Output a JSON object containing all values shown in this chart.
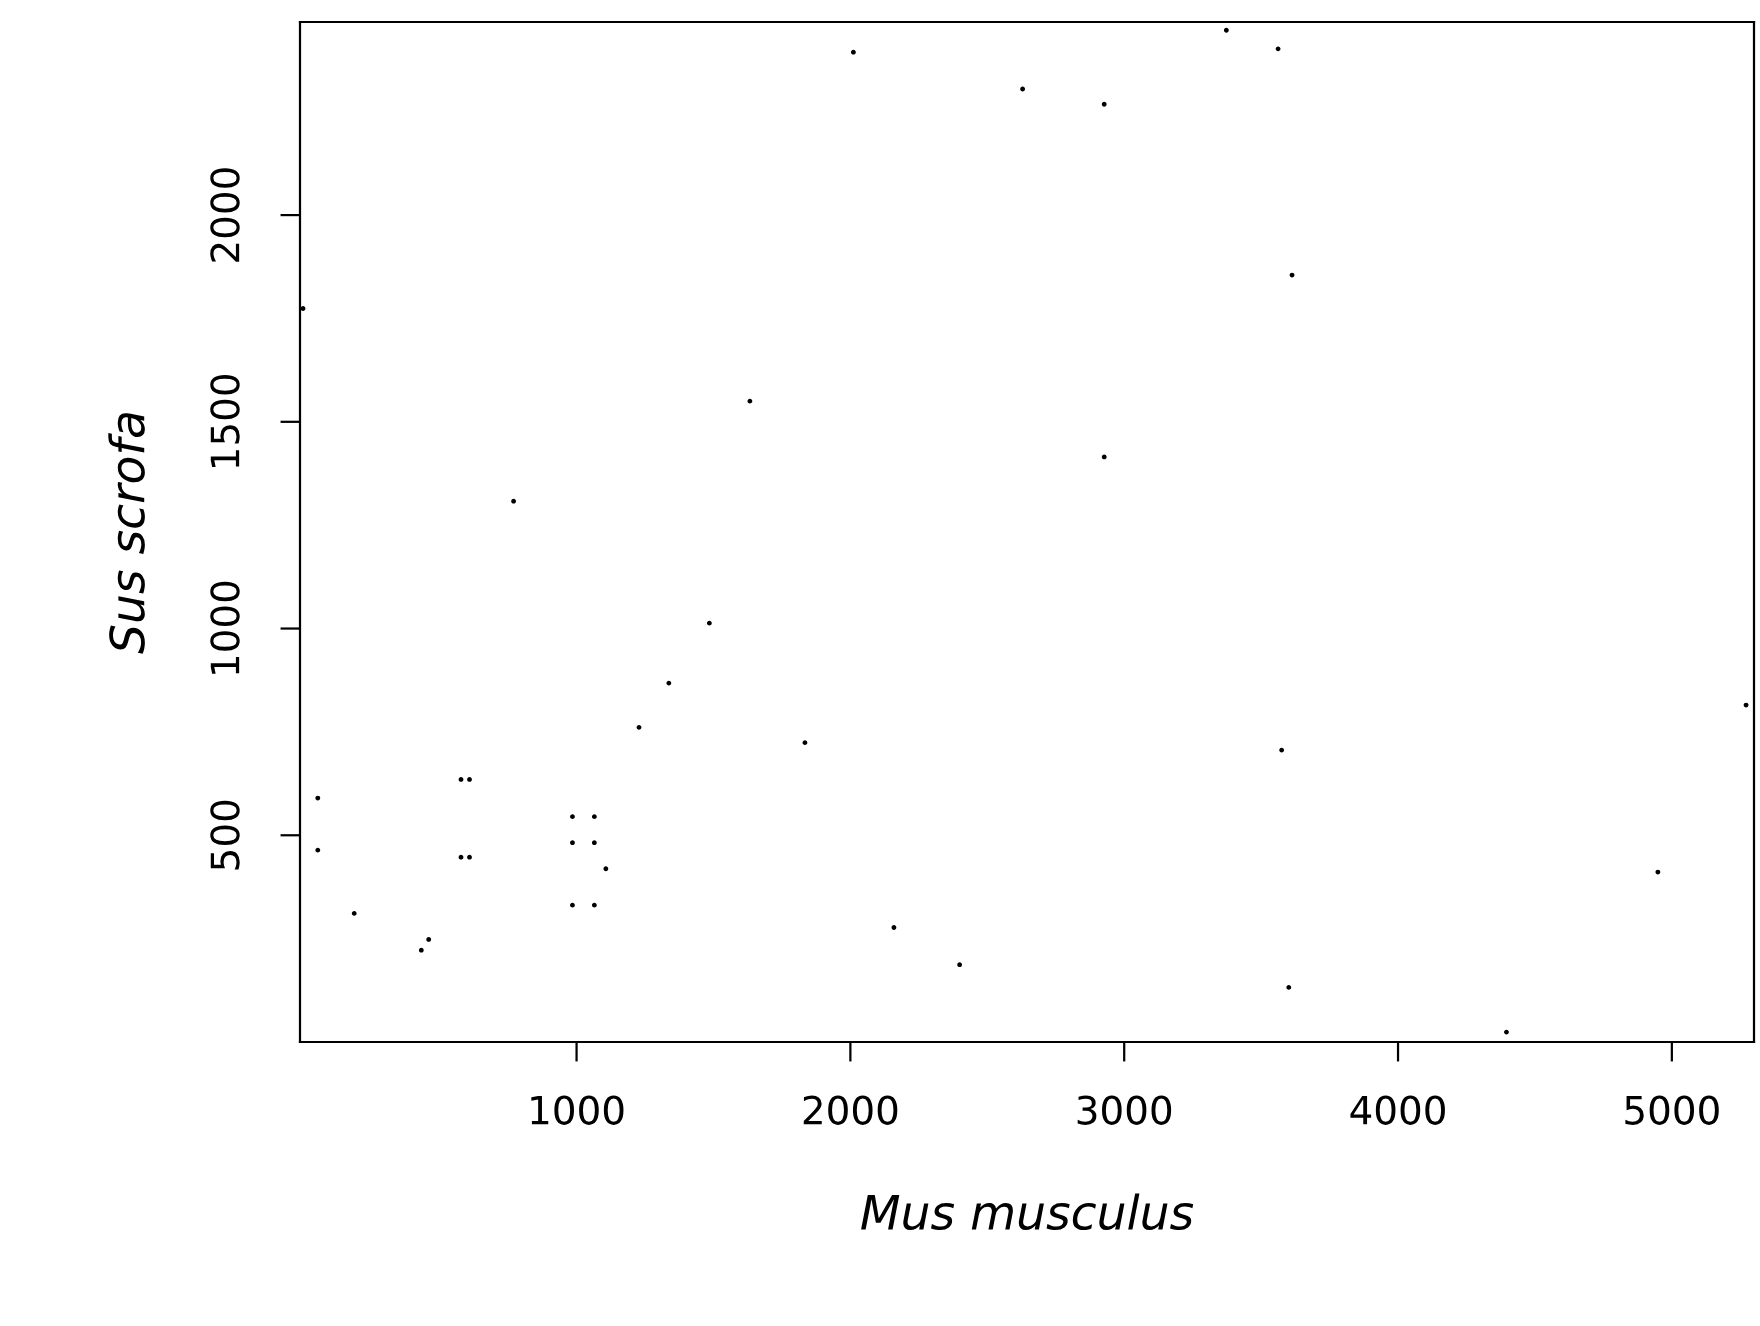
{
  "chart_data": {
    "type": "scatter",
    "xlabel": "Mus musculus",
    "ylabel": "Sus scrofa",
    "xlim": [
      -10,
      5300
    ],
    "ylim": [
      0,
      2467
    ],
    "xticks": [
      1000,
      2000,
      3000,
      4000,
      5000
    ],
    "yticks": [
      500,
      1000,
      1500,
      2000
    ],
    "grid": false,
    "marker": "circle",
    "series": [
      {
        "color": "#000000",
        "x": [
          2011,
          2629,
          1,
          1633,
          770,
          3373,
          3562,
          2927,
          3613,
          2927,
          1485,
          1337,
          1228,
          1834,
          578,
          609,
          55,
          55,
          578,
          609,
          985,
          1065,
          985,
          1065,
          1107,
          985,
          1065,
          188,
          460,
          433,
          2159,
          2399,
          3575,
          5271,
          4949,
          3601,
          4396
        ],
        "values": [
          2394,
          2305,
          1774,
          1550,
          1308,
          2447,
          2402,
          2268,
          1855,
          1415,
          1013,
          868,
          761,
          724,
          635,
          635,
          590,
          464,
          447,
          447,
          545,
          545,
          482,
          482,
          419,
          331,
          331,
          311,
          248,
          222,
          277,
          187,
          706,
          815,
          411,
          132,
          24
        ]
      }
    ]
  }
}
